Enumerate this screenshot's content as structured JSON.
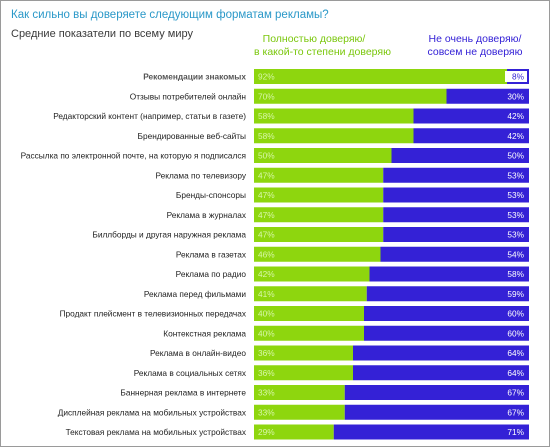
{
  "title": "Как сильно вы доверяете следующим форматам рекламы?",
  "subtitle": "Средние показатели по всему миру",
  "colors": {
    "trust": "#8ed60e",
    "distrust": "#3421d6",
    "title": "#2a98c8",
    "trust_label": "#d8f7a8",
    "distrust_label": "#ffffff",
    "highlight_label": "#555555"
  },
  "chart_data": {
    "type": "bar",
    "orientation": "horizontal",
    "stacked": true,
    "xlim": [
      0,
      100
    ],
    "unit": "%",
    "categories": [
      "Рекомендации знакомых",
      "Отзывы потребителей онлайн",
      "Редакторский контент  (например, статьи в газете)",
      "Брендированные веб-сайты",
      "Рассылка по электронной почте, на которую я подписался",
      "Реклама по телевизору",
      "Бренды-спонсоры",
      "Реклама в журналах",
      "Биллборды и другая наружная реклама",
      "Реклама в газетах",
      "Реклама по радио",
      "Реклама перед фильмами",
      "Продакт плейсмент в телевизионных передачах",
      "Контекстная реклама",
      "Реклама в онлайн-видео",
      "Реклама в социальных сетях",
      "Баннерная реклама в интернете",
      "Дисплейная реклама на мобильных устройствах",
      "Текстовая реклама на мобильных устройствах"
    ],
    "series": [
      {
        "name": "Полностью доверяю/\nв какой-то степени доверяю",
        "values": [
          92,
          70,
          58,
          58,
          50,
          47,
          47,
          47,
          47,
          46,
          42,
          41,
          40,
          40,
          36,
          36,
          33,
          33,
          29
        ]
      },
      {
        "name": "Не очень доверяю/\nсовсем не доверяю",
        "values": [
          8,
          30,
          42,
          42,
          50,
          53,
          53,
          53,
          53,
          54,
          58,
          59,
          60,
          60,
          64,
          64,
          67,
          67,
          71
        ]
      }
    ],
    "highlighted_category": "Рекомендации знакомых"
  }
}
